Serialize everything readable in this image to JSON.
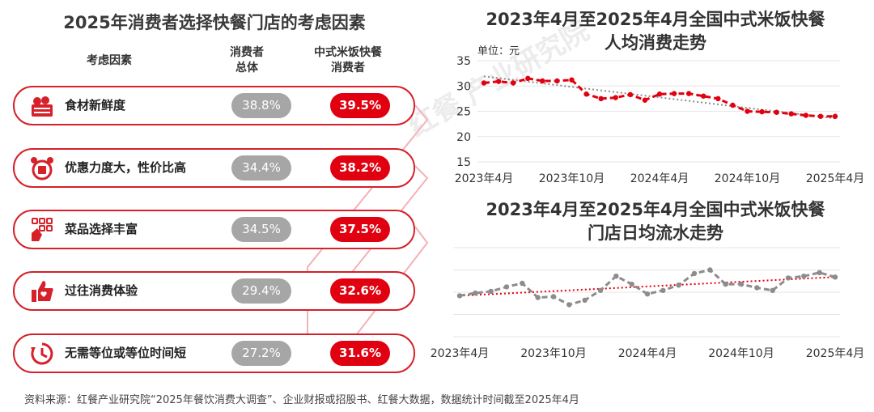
{
  "left_panel": {
    "title": "2025年消费者选择快餐门店的考虑因素",
    "col_factor": "考虑因素",
    "col_all": "消费者\n总体",
    "col_rice": "中式米饭快餐\n消费者",
    "rows": [
      {
        "factor": "食材新鲜度",
        "icon": "fresh-food-basket-icon",
        "all": "38.8%",
        "rice": "39.5%"
      },
      {
        "factor": "优惠力度大，性价比高",
        "icon": "discount-alarm-clock-icon",
        "all": "34.4%",
        "rice": "38.2%"
      },
      {
        "factor": "菜品选择丰富",
        "icon": "menu-grid-hand-icon",
        "all": "34.5%",
        "rice": "37.5%"
      },
      {
        "factor": "过往消费体验",
        "icon": "thumbs-up-icon",
        "all": "29.4%",
        "rice": "32.6%"
      },
      {
        "factor": "无需等位或等位时间短",
        "icon": "timer-clock-icon",
        "all": "27.2%",
        "rice": "31.6%"
      }
    ]
  },
  "watermark": "红餐 产业研究院",
  "source": "资料来源：红餐产业研究院“2025年餐饮消费大调查”、企业财报或招股书、红餐大数据，数据统计时间截至2025年4月",
  "colors": {
    "accent": "#e1000f",
    "gray": "#a6a6a6",
    "trend": "#8c8c8c",
    "grid": "#e5e5e5"
  },
  "chart_data": [
    {
      "type": "line",
      "title": "2023年4月至2025年4月全国中式米饭快餐\n人均消费走势",
      "ylabel": "单位：元",
      "ylim": [
        15,
        35
      ],
      "yticks": [
        15,
        20,
        25,
        30,
        35
      ],
      "xtick_labels": [
        "2023年4月",
        "2023年10月",
        "2024年4月",
        "2024年10月",
        "2025年4月"
      ],
      "xtick_index": [
        0,
        6,
        12,
        18,
        24
      ],
      "grid": true,
      "series": [
        {
          "values": [
            30.6,
            30.9,
            30.6,
            31.5,
            31.0,
            31.0,
            31.2,
            28.4,
            27.5,
            27.7,
            28.3,
            27.2,
            28.4,
            28.5,
            28.5,
            28.0,
            27.5,
            26.2,
            25.0,
            24.9,
            24.8,
            24.5,
            24.2,
            24.0,
            24.0
          ],
          "style": "dashed",
          "color": "#e1000f"
        }
      ],
      "trendline": {
        "from": 31.9,
        "to": 23.6,
        "style": "dotted",
        "color": "#8c8c8c"
      }
    },
    {
      "type": "line",
      "title": "2023年4月至2025年4月全国中式米饭快餐\n门店日均流水走势",
      "xtick_labels": [
        "2023年4月",
        "2023年10月",
        "2024年4月",
        "2024年10月",
        "2025年4月"
      ],
      "xtick_index": [
        0,
        6,
        12,
        18,
        24
      ],
      "grid": true,
      "ylim": [
        0,
        100
      ],
      "series": [
        {
          "values": [
            46,
            49,
            51,
            56,
            60,
            44,
            45,
            36,
            41,
            52,
            68,
            59,
            48,
            52,
            58,
            71,
            75,
            59,
            59,
            55,
            52,
            66,
            68,
            72,
            67
          ],
          "style": "dashed",
          "color": "#8c8c8c"
        }
      ],
      "trendline": {
        "from": 46,
        "to": 67,
        "style": "dotted",
        "color": "#e1000f"
      }
    }
  ]
}
